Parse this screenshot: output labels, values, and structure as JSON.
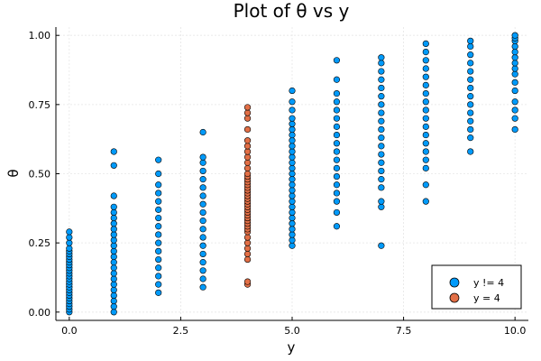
{
  "chart_data": {
    "type": "scatter",
    "title": "Plot of θ vs y",
    "xlabel": "y",
    "ylabel": "θ",
    "xlim": [
      -0.3,
      10.3
    ],
    "ylim": [
      -0.03,
      1.03
    ],
    "xticks": [
      0,
      2.5,
      5,
      7.5,
      10
    ],
    "xtick_labels": [
      "0.0",
      "2.5",
      "5.0",
      "7.5",
      "10.0"
    ],
    "yticks": [
      0,
      0.25,
      0.5,
      0.75,
      1
    ],
    "ytick_labels": [
      "0.00",
      "0.25",
      "0.50",
      "0.75",
      "1.00"
    ],
    "grid": true,
    "legend_position": "bottom-right",
    "series": [
      {
        "name": "y != 4",
        "color": "#009AFA",
        "points": [
          [
            0,
            0.0
          ],
          [
            0,
            0.01
          ],
          [
            0,
            0.02
          ],
          [
            0,
            0.03
          ],
          [
            0,
            0.04
          ],
          [
            0,
            0.05
          ],
          [
            0,
            0.06
          ],
          [
            0,
            0.07
          ],
          [
            0,
            0.08
          ],
          [
            0,
            0.09
          ],
          [
            0,
            0.1
          ],
          [
            0,
            0.11
          ],
          [
            0,
            0.12
          ],
          [
            0,
            0.13
          ],
          [
            0,
            0.14
          ],
          [
            0,
            0.15
          ],
          [
            0,
            0.16
          ],
          [
            0,
            0.17
          ],
          [
            0,
            0.18
          ],
          [
            0,
            0.19
          ],
          [
            0,
            0.2
          ],
          [
            0,
            0.21
          ],
          [
            0,
            0.22
          ],
          [
            0,
            0.23
          ],
          [
            0,
            0.25
          ],
          [
            0,
            0.27
          ],
          [
            0,
            0.29
          ],
          [
            1,
            0.0
          ],
          [
            1,
            0.02
          ],
          [
            1,
            0.04
          ],
          [
            1,
            0.06
          ],
          [
            1,
            0.08
          ],
          [
            1,
            0.1
          ],
          [
            1,
            0.12
          ],
          [
            1,
            0.14
          ],
          [
            1,
            0.16
          ],
          [
            1,
            0.18
          ],
          [
            1,
            0.2
          ],
          [
            1,
            0.22
          ],
          [
            1,
            0.24
          ],
          [
            1,
            0.26
          ],
          [
            1,
            0.28
          ],
          [
            1,
            0.3
          ],
          [
            1,
            0.32
          ],
          [
            1,
            0.34
          ],
          [
            1,
            0.36
          ],
          [
            1,
            0.38
          ],
          [
            1,
            0.42
          ],
          [
            1,
            0.53
          ],
          [
            1,
            0.58
          ],
          [
            2,
            0.07
          ],
          [
            2,
            0.1
          ],
          [
            2,
            0.13
          ],
          [
            2,
            0.16
          ],
          [
            2,
            0.19
          ],
          [
            2,
            0.22
          ],
          [
            2,
            0.25
          ],
          [
            2,
            0.28
          ],
          [
            2,
            0.31
          ],
          [
            2,
            0.34
          ],
          [
            2,
            0.37
          ],
          [
            2,
            0.4
          ],
          [
            2,
            0.43
          ],
          [
            2,
            0.46
          ],
          [
            2,
            0.5
          ],
          [
            2,
            0.55
          ],
          [
            3,
            0.09
          ],
          [
            3,
            0.12
          ],
          [
            3,
            0.15
          ],
          [
            3,
            0.18
          ],
          [
            3,
            0.21
          ],
          [
            3,
            0.24
          ],
          [
            3,
            0.27
          ],
          [
            3,
            0.3
          ],
          [
            3,
            0.33
          ],
          [
            3,
            0.36
          ],
          [
            3,
            0.39
          ],
          [
            3,
            0.42
          ],
          [
            3,
            0.45
          ],
          [
            3,
            0.48
          ],
          [
            3,
            0.51
          ],
          [
            3,
            0.54
          ],
          [
            3,
            0.56
          ],
          [
            3,
            0.65
          ],
          [
            5,
            0.24
          ],
          [
            5,
            0.26
          ],
          [
            5,
            0.28
          ],
          [
            5,
            0.3
          ],
          [
            5,
            0.32
          ],
          [
            5,
            0.34
          ],
          [
            5,
            0.36
          ],
          [
            5,
            0.38
          ],
          [
            5,
            0.4
          ],
          [
            5,
            0.42
          ],
          [
            5,
            0.44
          ],
          [
            5,
            0.46
          ],
          [
            5,
            0.48
          ],
          [
            5,
            0.5
          ],
          [
            5,
            0.52
          ],
          [
            5,
            0.54
          ],
          [
            5,
            0.56
          ],
          [
            5,
            0.58
          ],
          [
            5,
            0.6
          ],
          [
            5,
            0.62
          ],
          [
            5,
            0.64
          ],
          [
            5,
            0.66
          ],
          [
            5,
            0.68
          ],
          [
            5,
            0.7
          ],
          [
            5,
            0.73
          ],
          [
            5,
            0.76
          ],
          [
            5,
            0.8
          ],
          [
            6,
            0.31
          ],
          [
            6,
            0.36
          ],
          [
            6,
            0.4
          ],
          [
            6,
            0.43
          ],
          [
            6,
            0.46
          ],
          [
            6,
            0.49
          ],
          [
            6,
            0.52
          ],
          [
            6,
            0.55
          ],
          [
            6,
            0.58
          ],
          [
            6,
            0.61
          ],
          [
            6,
            0.64
          ],
          [
            6,
            0.67
          ],
          [
            6,
            0.7
          ],
          [
            6,
            0.73
          ],
          [
            6,
            0.76
          ],
          [
            6,
            0.79
          ],
          [
            6,
            0.84
          ],
          [
            6,
            0.91
          ],
          [
            7,
            0.24
          ],
          [
            7,
            0.38
          ],
          [
            7,
            0.4
          ],
          [
            7,
            0.45
          ],
          [
            7,
            0.48
          ],
          [
            7,
            0.51
          ],
          [
            7,
            0.54
          ],
          [
            7,
            0.57
          ],
          [
            7,
            0.6
          ],
          [
            7,
            0.63
          ],
          [
            7,
            0.66
          ],
          [
            7,
            0.69
          ],
          [
            7,
            0.72
          ],
          [
            7,
            0.75
          ],
          [
            7,
            0.78
          ],
          [
            7,
            0.81
          ],
          [
            7,
            0.84
          ],
          [
            7,
            0.87
          ],
          [
            7,
            0.9
          ],
          [
            7,
            0.92
          ],
          [
            8,
            0.4
          ],
          [
            8,
            0.46
          ],
          [
            8,
            0.52
          ],
          [
            8,
            0.55
          ],
          [
            8,
            0.58
          ],
          [
            8,
            0.61
          ],
          [
            8,
            0.64
          ],
          [
            8,
            0.67
          ],
          [
            8,
            0.7
          ],
          [
            8,
            0.73
          ],
          [
            8,
            0.76
          ],
          [
            8,
            0.79
          ],
          [
            8,
            0.82
          ],
          [
            8,
            0.85
          ],
          [
            8,
            0.88
          ],
          [
            8,
            0.91
          ],
          [
            8,
            0.94
          ],
          [
            8,
            0.97
          ],
          [
            9,
            0.58
          ],
          [
            9,
            0.63
          ],
          [
            9,
            0.66
          ],
          [
            9,
            0.69
          ],
          [
            9,
            0.72
          ],
          [
            9,
            0.75
          ],
          [
            9,
            0.78
          ],
          [
            9,
            0.81
          ],
          [
            9,
            0.84
          ],
          [
            9,
            0.87
          ],
          [
            9,
            0.9
          ],
          [
            9,
            0.93
          ],
          [
            9,
            0.96
          ],
          [
            9,
            0.98
          ],
          [
            10,
            0.66
          ],
          [
            10,
            0.7
          ],
          [
            10,
            0.73
          ],
          [
            10,
            0.76
          ],
          [
            10,
            0.8
          ],
          [
            10,
            0.83
          ],
          [
            10,
            0.86
          ],
          [
            10,
            0.88
          ],
          [
            10,
            0.9
          ],
          [
            10,
            0.92
          ],
          [
            10,
            0.94
          ],
          [
            10,
            0.96
          ],
          [
            10,
            0.98
          ],
          [
            10,
            0.99
          ],
          [
            10,
            1.0
          ]
        ]
      },
      {
        "name": "y = 4",
        "color": "#E26F46",
        "points": [
          [
            4,
            0.1
          ],
          [
            4,
            0.11
          ],
          [
            4,
            0.19
          ],
          [
            4,
            0.21
          ],
          [
            4,
            0.23
          ],
          [
            4,
            0.25
          ],
          [
            4,
            0.27
          ],
          [
            4,
            0.29
          ],
          [
            4,
            0.3
          ],
          [
            4,
            0.31
          ],
          [
            4,
            0.32
          ],
          [
            4,
            0.33
          ],
          [
            4,
            0.34
          ],
          [
            4,
            0.35
          ],
          [
            4,
            0.36
          ],
          [
            4,
            0.37
          ],
          [
            4,
            0.38
          ],
          [
            4,
            0.39
          ],
          [
            4,
            0.4
          ],
          [
            4,
            0.41
          ],
          [
            4,
            0.42
          ],
          [
            4,
            0.43
          ],
          [
            4,
            0.44
          ],
          [
            4,
            0.45
          ],
          [
            4,
            0.46
          ],
          [
            4,
            0.47
          ],
          [
            4,
            0.48
          ],
          [
            4,
            0.49
          ],
          [
            4,
            0.5
          ],
          [
            4,
            0.52
          ],
          [
            4,
            0.54
          ],
          [
            4,
            0.56
          ],
          [
            4,
            0.58
          ],
          [
            4,
            0.6
          ],
          [
            4,
            0.62
          ],
          [
            4,
            0.66
          ],
          [
            4,
            0.7
          ],
          [
            4,
            0.72
          ],
          [
            4,
            0.74
          ]
        ]
      }
    ]
  }
}
